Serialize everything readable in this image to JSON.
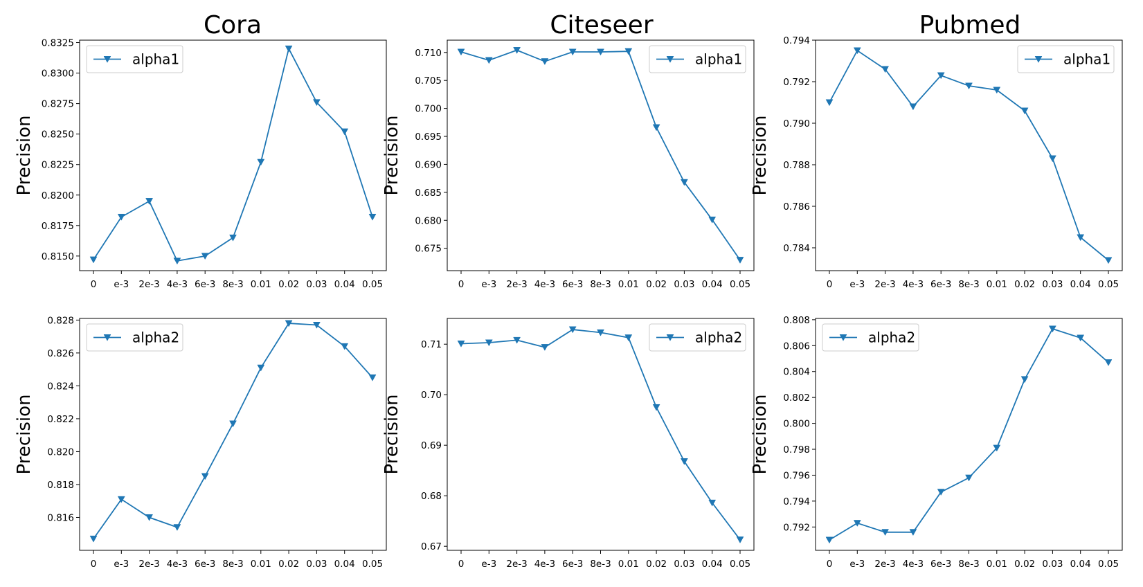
{
  "figure": {
    "column_titles": [
      "Cora",
      "Citeseer",
      "Pubmed"
    ]
  },
  "colors": {
    "line": "#1f77b4",
    "axes": "#000000",
    "legend_border": "#cccccc"
  },
  "chart_data": [
    {
      "type": "line",
      "title": "Cora",
      "xlabel": "",
      "ylabel": "Precision",
      "categories": [
        "0",
        "e-3",
        "2e-3",
        "4e-3",
        "6e-3",
        "8e-3",
        "0.01",
        "0.02",
        "0.03",
        "0.04",
        "0.05"
      ],
      "series": [
        {
          "name": "alpha1",
          "marker": "triangle-down",
          "values": [
            0.8147,
            0.8182,
            0.8195,
            0.8146,
            0.815,
            0.8165,
            0.8227,
            0.832,
            0.8276,
            0.8252,
            0.8182
          ]
        }
      ],
      "ylim": [
        0.8138,
        0.8327
      ],
      "yticks": [
        0.815,
        0.8175,
        0.82,
        0.8225,
        0.825,
        0.8275,
        0.83,
        0.8325
      ],
      "ytick_labels": [
        "0.8150",
        "0.8175",
        "0.8200",
        "0.8225",
        "0.8250",
        "0.8275",
        "0.8300",
        "0.8325"
      ],
      "legend": "upper left",
      "grid": false
    },
    {
      "type": "line",
      "title": "Citeseer",
      "xlabel": "",
      "ylabel": "Precision",
      "categories": [
        "0",
        "e-3",
        "2e-3",
        "4e-3",
        "6e-3",
        "8e-3",
        "0.01",
        "0.02",
        "0.03",
        "0.04",
        "0.05"
      ],
      "series": [
        {
          "name": "alpha1",
          "marker": "triangle-down",
          "values": [
            0.7101,
            0.7086,
            0.7104,
            0.7084,
            0.7101,
            0.7101,
            0.7102,
            0.6966,
            0.6868,
            0.6801,
            0.6729
          ]
        }
      ],
      "ylim": [
        0.671,
        0.7122
      ],
      "yticks": [
        0.675,
        0.68,
        0.685,
        0.69,
        0.695,
        0.7,
        0.705,
        0.71
      ],
      "ytick_labels": [
        "0.675",
        "0.680",
        "0.685",
        "0.690",
        "0.695",
        "0.700",
        "0.705",
        "0.710"
      ],
      "legend": "upper right",
      "grid": false
    },
    {
      "type": "line",
      "title": "Pubmed",
      "xlabel": "",
      "ylabel": "Precision",
      "categories": [
        "0",
        "e-3",
        "2e-3",
        "4e-3",
        "6e-3",
        "8e-3",
        "0.01",
        "0.02",
        "0.03",
        "0.04",
        "0.05"
      ],
      "series": [
        {
          "name": "alpha1",
          "marker": "triangle-down",
          "values": [
            0.791,
            0.7935,
            0.7926,
            0.7908,
            0.7923,
            0.7918,
            0.7916,
            0.7906,
            0.7883,
            0.7845,
            0.7834
          ]
        }
      ],
      "ylim": [
        0.7829,
        0.794
      ],
      "yticks": [
        0.784,
        0.786,
        0.788,
        0.79,
        0.792,
        0.794
      ],
      "ytick_labels": [
        "0.784",
        "0.786",
        "0.788",
        "0.790",
        "0.792",
        "0.794"
      ],
      "legend": "upper right",
      "grid": false
    },
    {
      "type": "line",
      "title": "",
      "xlabel": "",
      "ylabel": "Precision",
      "categories": [
        "0",
        "e-3",
        "2e-3",
        "4e-3",
        "6e-3",
        "8e-3",
        "0.01",
        "0.02",
        "0.03",
        "0.04",
        "0.05"
      ],
      "series": [
        {
          "name": "alpha2",
          "marker": "triangle-down",
          "values": [
            0.8147,
            0.8171,
            0.816,
            0.8154,
            0.8185,
            0.8217,
            0.8251,
            0.8278,
            0.8277,
            0.8264,
            0.8245
          ]
        }
      ],
      "ylim": [
        0.814,
        0.8281
      ],
      "yticks": [
        0.816,
        0.818,
        0.82,
        0.822,
        0.824,
        0.826,
        0.828
      ],
      "ytick_labels": [
        "0.816",
        "0.818",
        "0.820",
        "0.822",
        "0.824",
        "0.826",
        "0.828"
      ],
      "legend": "upper left",
      "grid": false
    },
    {
      "type": "line",
      "title": "",
      "xlabel": "",
      "ylabel": "Precision",
      "categories": [
        "0",
        "e-3",
        "2e-3",
        "4e-3",
        "6e-3",
        "8e-3",
        "0.01",
        "0.02",
        "0.03",
        "0.04",
        "0.05"
      ],
      "series": [
        {
          "name": "alpha2",
          "marker": "triangle-down",
          "values": [
            0.7101,
            0.7103,
            0.7108,
            0.7094,
            0.7129,
            0.7123,
            0.7113,
            0.6975,
            0.6868,
            0.6786,
            0.6713
          ]
        }
      ],
      "ylim": [
        0.6692,
        0.7151
      ],
      "yticks": [
        0.67,
        0.68,
        0.69,
        0.7,
        0.71
      ],
      "ytick_labels": [
        "0.67",
        "0.68",
        "0.69",
        "0.70",
        "0.71"
      ],
      "legend": "upper right",
      "grid": false
    },
    {
      "type": "line",
      "title": "",
      "xlabel": "",
      "ylabel": "Precision",
      "categories": [
        "0",
        "e-3",
        "2e-3",
        "4e-3",
        "6e-3",
        "8e-3",
        "0.01",
        "0.02",
        "0.03",
        "0.04",
        "0.05"
      ],
      "series": [
        {
          "name": "alpha2",
          "marker": "triangle-down",
          "values": [
            0.791,
            0.7923,
            0.7916,
            0.7916,
            0.7947,
            0.7958,
            0.7981,
            0.8034,
            0.8073,
            0.8066,
            0.8047
          ]
        }
      ],
      "ylim": [
        0.7902,
        0.8081
      ],
      "yticks": [
        0.792,
        0.794,
        0.796,
        0.798,
        0.8,
        0.802,
        0.804,
        0.806,
        0.808
      ],
      "ytick_labels": [
        "0.792",
        "0.794",
        "0.796",
        "0.798",
        "0.800",
        "0.802",
        "0.804",
        "0.806",
        "0.808"
      ],
      "legend": "upper left",
      "grid": false
    }
  ]
}
